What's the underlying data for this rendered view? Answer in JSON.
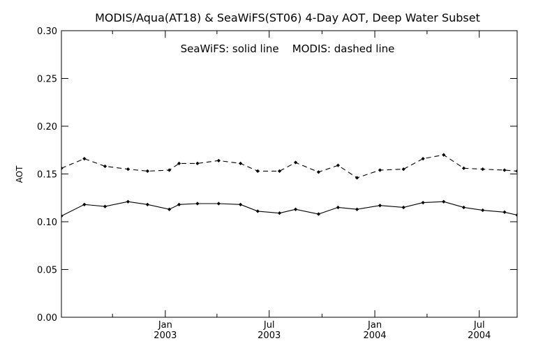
{
  "chart_data": {
    "type": "line",
    "title": "MODIS/Aqua(AT18) & SeaWiFS(ST06) 4-Day AOT, Deep Water Subset",
    "annotation": "SeaWiFS: solid line    MODIS: dashed line",
    "xlabel": "",
    "ylabel": "AOT",
    "ylim": [
      0.0,
      0.3
    ],
    "yticks": [
      "0.00",
      "0.05",
      "0.10",
      "0.15",
      "0.20",
      "0.25",
      "0.30"
    ],
    "xlim": [
      "2002-07-04",
      "2004-09-05"
    ],
    "xticks": [
      {
        "date": "2003-01-01",
        "month": "Jan",
        "year": "2003"
      },
      {
        "date": "2003-07-01",
        "month": "Jul",
        "year": "2003"
      },
      {
        "date": "2004-01-01",
        "month": "Jan",
        "year": "2004"
      },
      {
        "date": "2004-07-01",
        "month": "Jul",
        "year": "2004"
      }
    ],
    "minor_xticks": [
      "2002-10-01",
      "2003-04-01",
      "2003-10-01",
      "2004-04-01"
    ],
    "grid": false,
    "series": [
      {
        "name": "SeaWiFS",
        "style": "solid",
        "color": "#000000",
        "points": [
          [
            "2002-07-04",
            0.106
          ],
          [
            "2002-08-13",
            0.118
          ],
          [
            "2002-09-18",
            0.116
          ],
          [
            "2002-10-28",
            0.121
          ],
          [
            "2002-12-01",
            0.118
          ],
          [
            "2003-01-08",
            0.113
          ],
          [
            "2003-01-25",
            0.118
          ],
          [
            "2003-02-26",
            0.119
          ],
          [
            "2003-04-04",
            0.119
          ],
          [
            "2003-05-12",
            0.118
          ],
          [
            "2003-06-11",
            0.111
          ],
          [
            "2003-07-19",
            0.109
          ],
          [
            "2003-08-16",
            0.113
          ],
          [
            "2003-09-25",
            0.108
          ],
          [
            "2003-10-29",
            0.115
          ],
          [
            "2003-12-01",
            0.113
          ],
          [
            "2004-01-10",
            0.117
          ],
          [
            "2004-02-20",
            0.115
          ],
          [
            "2004-03-25",
            0.12
          ],
          [
            "2004-04-30",
            0.121
          ],
          [
            "2004-06-04",
            0.115
          ],
          [
            "2004-07-07",
            0.112
          ],
          [
            "2004-08-14",
            0.11
          ],
          [
            "2004-09-05",
            0.107
          ],
          [
            "2004-09-20",
            0.108
          ]
        ]
      },
      {
        "name": "MODIS",
        "style": "dashed",
        "color": "#000000",
        "points": [
          [
            "2002-07-04",
            0.156
          ],
          [
            "2002-08-13",
            0.166
          ],
          [
            "2002-09-18",
            0.158
          ],
          [
            "2002-10-28",
            0.155
          ],
          [
            "2002-12-01",
            0.153
          ],
          [
            "2003-01-08",
            0.154
          ],
          [
            "2003-01-25",
            0.161
          ],
          [
            "2003-02-26",
            0.161
          ],
          [
            "2003-04-04",
            0.164
          ],
          [
            "2003-05-12",
            0.161
          ],
          [
            "2003-06-11",
            0.153
          ],
          [
            "2003-07-19",
            0.153
          ],
          [
            "2003-08-16",
            0.162
          ],
          [
            "2003-09-25",
            0.152
          ],
          [
            "2003-10-29",
            0.159
          ],
          [
            "2003-12-01",
            0.146
          ],
          [
            "2004-01-10",
            0.154
          ],
          [
            "2004-02-20",
            0.155
          ],
          [
            "2004-03-25",
            0.166
          ],
          [
            "2004-04-30",
            0.17
          ],
          [
            "2004-06-04",
            0.156
          ],
          [
            "2004-07-07",
            0.155
          ],
          [
            "2004-08-14",
            0.154
          ],
          [
            "2004-09-05",
            0.153
          ],
          [
            "2004-09-20",
            0.152
          ]
        ]
      }
    ]
  }
}
